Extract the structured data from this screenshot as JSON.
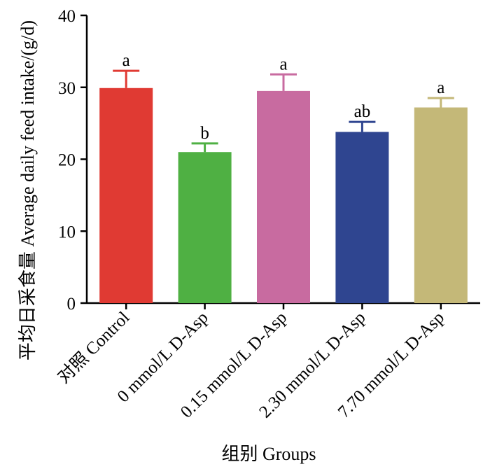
{
  "chart_data": {
    "type": "bar",
    "ylabel": "平均日采食量  Average daily feed intake/(g/d)",
    "xlabel": "组别 Groups",
    "categories": [
      "对照 Control",
      "0 mmol/L D-Asp",
      "0.15 mmol/L D-Asp",
      "2.30 mmol/L D-Asp",
      "7.70 mmol/L D-Asp"
    ],
    "values": [
      29.9,
      21.0,
      29.5,
      23.8,
      27.2
    ],
    "errors": [
      2.4,
      1.2,
      2.3,
      1.4,
      1.3
    ],
    "significance": [
      "a",
      "b",
      "a",
      "ab",
      "a"
    ],
    "colors": [
      "#e03a33",
      "#4fb043",
      "#c86ba0",
      "#2f4590",
      "#c4b878"
    ],
    "yticks": [
      0,
      10,
      20,
      30,
      40
    ],
    "ylim": [
      0,
      40
    ],
    "grid": false,
    "legend": "none"
  }
}
